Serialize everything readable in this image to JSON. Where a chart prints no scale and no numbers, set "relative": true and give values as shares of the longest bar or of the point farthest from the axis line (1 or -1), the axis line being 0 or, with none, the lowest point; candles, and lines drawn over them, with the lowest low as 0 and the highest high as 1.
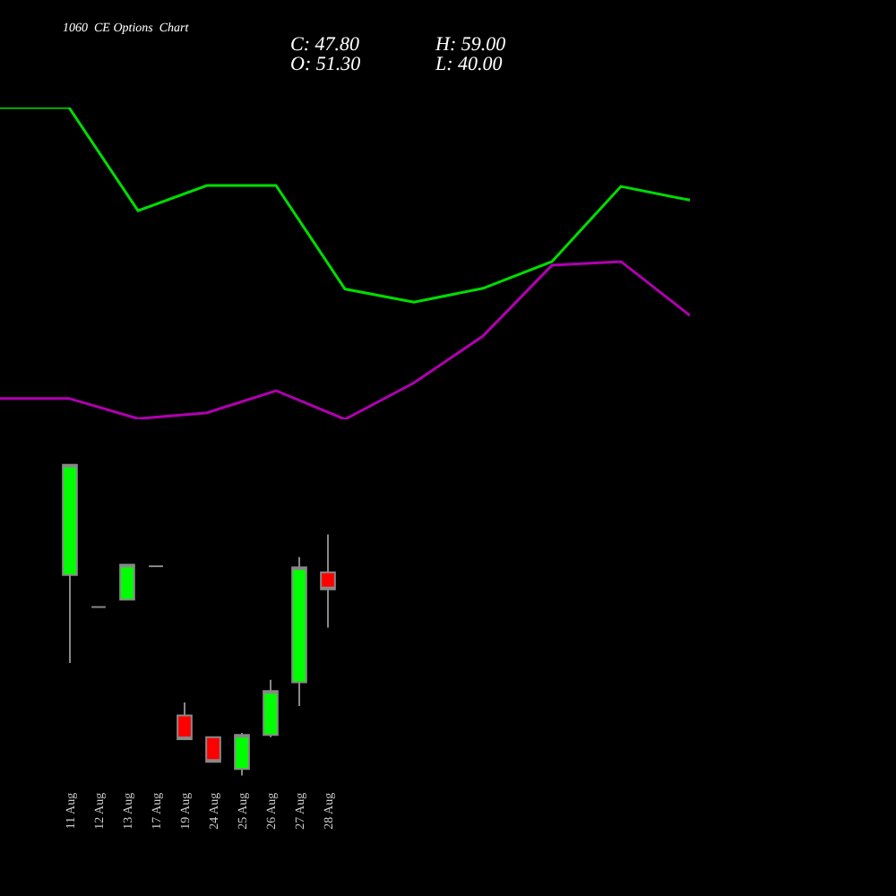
{
  "chart_data": [
    {
      "type": "candlestick",
      "annotations": [
        "C: 47.80",
        "O: 51.30",
        "H: 59.00",
        "L: 40.00"
      ],
      "categories": [
        "11 Aug",
        "12 Aug",
        "13 Aug",
        "17 Aug",
        "19 Aug",
        "24 Aug",
        "25 Aug",
        "26 Aug",
        "27 Aug",
        "28 Aug"
      ],
      "relative": true,
      "ohlc": [
        [
          0.645,
          1,
          0.362,
          1
        ],
        [
          0.542,
          0.542,
          0.542,
          0.542
        ],
        [
          0.566,
          0.678,
          0.566,
          0.678
        ],
        [
          0.673,
          0.673,
          0.673,
          0.673
        ],
        [
          0.193,
          0.235,
          0.117,
          0.117
        ],
        [
          0.123,
          0.123,
          0.043,
          0.044
        ],
        [
          0.021,
          0.137,
          0,
          0.13
        ],
        [
          0.13,
          0.308,
          0.123,
          0.272
        ],
        [
          0.3,
          0.703,
          0.223,
          0.67
        ],
        [
          0.654,
          0.776,
          0.476,
          0.599
        ]
      ],
      "colors": [
        "#00ff00",
        "#888888",
        "#00ff00",
        "#888888",
        "#ff0000",
        "#ff0000",
        "#00ff00",
        "#00ff00",
        "#00ff00",
        "#ff0000"
      ],
      "tick_labels": "x"
    },
    {
      "type": "line",
      "title": "1060  CE Options  Chart",
      "relative": true,
      "categories": [
        null,
        null,
        null,
        null,
        null,
        null,
        null,
        null,
        null,
        null,
        null
      ],
      "tick_labels": false,
      "series": [
        {
          "color": "#00dd00",
          "values": [
            1,
            1,
            0.669,
            0.75,
            0.75,
            0.418,
            0.376,
            0.42,
            0.506,
            0.747,
            0.703
          ]
        },
        {
          "color": "#b000b0",
          "values": [
            0.067,
            0.067,
            0.002,
            0.021,
            0.092,
            0,
            0.117,
            0.267,
            0.494,
            0.506,
            0.333
          ]
        }
      ]
    }
  ]
}
